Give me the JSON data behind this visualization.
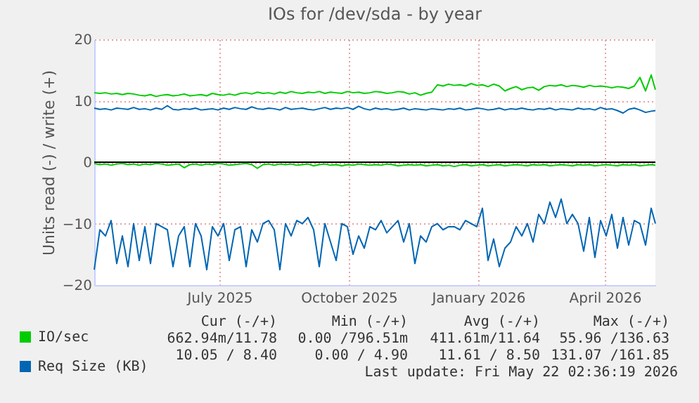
{
  "chart_data": {
    "type": "line",
    "title": "IOs for /dev/sda - by year",
    "ylabel": "Units read (-) / write (+)",
    "x": [
      "2025-04-18",
      "2025-04-22",
      "2025-04-26",
      "2025-04-30",
      "2025-05-04",
      "2025-05-08",
      "2025-05-12",
      "2025-05-16",
      "2025-05-20",
      "2025-05-24",
      "2025-05-28",
      "2025-06-01",
      "2025-06-05",
      "2025-06-09",
      "2025-06-13",
      "2025-06-17",
      "2025-06-21",
      "2025-06-25",
      "2025-06-29",
      "2025-07-03",
      "2025-07-07",
      "2025-07-11",
      "2025-07-15",
      "2025-07-19",
      "2025-07-23",
      "2025-07-27",
      "2025-07-31",
      "2025-08-04",
      "2025-08-08",
      "2025-08-12",
      "2025-08-16",
      "2025-08-20",
      "2025-08-24",
      "2025-08-28",
      "2025-09-01",
      "2025-09-05",
      "2025-09-09",
      "2025-09-13",
      "2025-09-17",
      "2025-09-21",
      "2025-09-25",
      "2025-09-29",
      "2025-10-03",
      "2025-10-07",
      "2025-10-11",
      "2025-10-15",
      "2025-10-19",
      "2025-10-23",
      "2025-10-27",
      "2025-10-31",
      "2025-11-04",
      "2025-11-08",
      "2025-11-12",
      "2025-11-16",
      "2025-11-20",
      "2025-11-24",
      "2025-11-28",
      "2025-12-02",
      "2025-12-06",
      "2025-12-10",
      "2025-12-14",
      "2025-12-18",
      "2025-12-22",
      "2025-12-26",
      "2025-12-30",
      "2026-01-03",
      "2026-01-07",
      "2026-01-11",
      "2026-01-15",
      "2026-01-19",
      "2026-01-23",
      "2026-01-27",
      "2026-01-31",
      "2026-02-04",
      "2026-02-08",
      "2026-02-12",
      "2026-02-16",
      "2026-02-20",
      "2026-02-24",
      "2026-02-28",
      "2026-03-04",
      "2026-03-08",
      "2026-03-12",
      "2026-03-16",
      "2026-03-20",
      "2026-03-24",
      "2026-03-28",
      "2026-04-01",
      "2026-04-05",
      "2026-04-09",
      "2026-04-13",
      "2026-04-17",
      "2026-04-21",
      "2026-04-25",
      "2026-04-29",
      "2026-05-03",
      "2026-05-07",
      "2026-05-11",
      "2026-05-15",
      "2026-05-19",
      "2026-05-22"
    ],
    "series": [
      {
        "name": "IO/sec",
        "color": "#00cc00",
        "values": [
          11.3,
          11.2,
          11.3,
          11.1,
          11.2,
          11.0,
          11.2,
          11.1,
          10.9,
          10.8,
          11.0,
          10.7,
          10.9,
          11.0,
          10.8,
          10.9,
          11.1,
          10.8,
          10.9,
          11.0,
          10.8,
          11.2,
          11.0,
          10.9,
          11.1,
          10.9,
          11.2,
          11.3,
          11.1,
          11.4,
          11.2,
          11.3,
          11.1,
          11.4,
          11.2,
          11.5,
          11.3,
          11.2,
          11.4,
          11.3,
          11.5,
          11.2,
          11.4,
          11.3,
          11.2,
          11.5,
          11.3,
          11.4,
          11.2,
          11.3,
          11.5,
          11.4,
          11.2,
          11.3,
          11.5,
          11.4,
          11.1,
          11.3,
          10.9,
          11.2,
          11.4,
          12.6,
          12.4,
          12.7,
          12.5,
          12.6,
          12.4,
          12.8,
          12.5,
          12.6,
          12.3,
          12.7,
          12.4,
          11.6,
          12.0,
          12.3,
          11.8,
          12.1,
          12.2,
          11.7,
          12.3,
          12.5,
          12.4,
          12.6,
          12.3,
          12.5,
          12.4,
          12.2,
          12.5,
          12.3,
          12.4,
          12.3,
          12.1,
          12.3,
          12.2,
          12.0,
          12.4,
          13.8,
          11.6,
          14.2,
          11.8
        ]
      },
      {
        "color": "#00cc00",
        "values": [
          -0.2,
          -0.4,
          -0.3,
          -0.5,
          -0.3,
          -0.2,
          -0.4,
          -0.3,
          -0.5,
          -0.3,
          -0.4,
          -0.2,
          -0.3,
          -0.5,
          -0.4,
          -0.3,
          -0.9,
          -0.4,
          -0.3,
          -0.5,
          -0.3,
          -0.4,
          -0.2,
          -0.3,
          -0.5,
          -0.4,
          -0.3,
          -0.2,
          -0.4,
          -1.0,
          -0.4,
          -0.3,
          -0.5,
          -0.3,
          -0.4,
          -0.3,
          -0.5,
          -0.4,
          -0.3,
          -0.6,
          -0.4,
          -0.3,
          -0.5,
          -0.4,
          -0.6,
          -0.4,
          -0.5,
          -0.3,
          -0.4,
          -0.5,
          -0.4,
          -0.5,
          -0.3,
          -0.4,
          -0.6,
          -0.5,
          -0.4,
          -0.5,
          -0.4,
          -0.6,
          -0.5,
          -0.4,
          -0.6,
          -0.5,
          -0.7,
          -0.5,
          -0.4,
          -0.6,
          -0.5,
          -0.4,
          -0.6,
          -0.5,
          -0.4,
          -0.6,
          -0.5,
          -0.4,
          -0.5,
          -0.6,
          -0.4,
          -0.5,
          -0.4,
          -0.6,
          -0.5,
          -0.4,
          -0.5,
          -0.6,
          -0.4,
          -0.5,
          -0.4,
          -0.6,
          -0.5,
          -0.4,
          -0.5,
          -0.6,
          -0.4,
          -0.5,
          -0.4,
          -0.6,
          -0.5,
          -0.4,
          -0.5
        ]
      },
      {
        "name": "Req Size (KB)",
        "color": "#0066b3",
        "values": [
          8.8,
          8.6,
          8.7,
          8.5,
          8.8,
          8.7,
          8.6,
          8.9,
          8.6,
          8.7,
          8.5,
          8.8,
          8.6,
          9.2,
          8.6,
          8.5,
          8.7,
          8.6,
          8.8,
          8.5,
          8.6,
          8.7,
          8.5,
          8.8,
          8.6,
          8.9,
          8.7,
          8.6,
          9.0,
          8.7,
          8.6,
          8.8,
          8.7,
          8.5,
          8.9,
          8.6,
          8.7,
          8.8,
          8.6,
          8.5,
          8.7,
          8.9,
          8.6,
          8.8,
          8.7,
          8.9,
          8.6,
          9.1,
          8.7,
          8.5,
          8.8,
          8.6,
          8.7,
          8.5,
          8.6,
          8.8,
          8.5,
          8.7,
          8.6,
          8.5,
          8.7,
          8.6,
          8.5,
          8.7,
          8.6,
          8.8,
          8.5,
          8.6,
          8.8,
          8.7,
          8.5,
          8.6,
          8.8,
          8.5,
          8.7,
          8.6,
          8.8,
          8.6,
          8.5,
          8.7,
          8.6,
          8.8,
          8.5,
          8.7,
          8.6,
          8.5,
          8.8,
          8.6,
          8.7,
          8.5,
          8.9,
          8.6,
          8.7,
          8.4,
          8.0,
          8.6,
          8.8,
          8.5,
          8.1,
          8.3,
          8.4
        ]
      },
      {
        "color": "#0066b3",
        "values": [
          -17.5,
          -11,
          -12,
          -9.5,
          -16.5,
          -12,
          -17,
          -10,
          -16,
          -10.5,
          -16.5,
          -10,
          -10.5,
          -11,
          -17,
          -12,
          -10.5,
          -17,
          -10,
          -12,
          -17.5,
          -10.5,
          -12,
          -10,
          -16,
          -11,
          -10.5,
          -17,
          -11,
          -13,
          -10,
          -9.5,
          -11,
          -17.5,
          -10,
          -12,
          -9.5,
          -10,
          -9,
          -11,
          -17,
          -10,
          -13,
          -16,
          -10,
          -10.5,
          -15,
          -12,
          -14,
          -10.5,
          -11,
          -9.5,
          -11.5,
          -10.5,
          -9.5,
          -13,
          -10,
          -16.5,
          -12,
          -13,
          -10.5,
          -10,
          -11,
          -10.5,
          -10.5,
          -11,
          -9.5,
          -10,
          -10.5,
          -7.5,
          -16,
          -12.5,
          -17,
          -14,
          -13,
          -10.5,
          -12,
          -10,
          -13,
          -8.5,
          -10,
          -6.5,
          -9,
          -6,
          -10,
          -8.5,
          -10,
          -14.5,
          -9,
          -15.5,
          -9.5,
          -12,
          -8.5,
          -14,
          -9,
          -13.5,
          -9.5,
          -10,
          -13.5,
          -7.5,
          -10
        ]
      }
    ],
    "xlim": [
      "2025-04-18",
      "2026-05-22"
    ],
    "xticks": [
      {
        "value": "2025-07-16",
        "label": "July 2025"
      },
      {
        "value": "2025-10-16",
        "label": "October 2025"
      },
      {
        "value": "2026-01-16",
        "label": "January 2026"
      },
      {
        "value": "2026-04-16",
        "label": "April 2026"
      }
    ],
    "ylim": [
      -20,
      20
    ],
    "yticks": [
      -20,
      -10,
      0,
      10,
      20
    ],
    "ref_lines": [
      {
        "axis": "y",
        "value": 0,
        "color": "#000000"
      }
    ],
    "grid": true,
    "legend": "bottom",
    "annotations": [
      "Cur (-/+)",
      "Min (-/+)",
      "Avg (-/+)",
      "Max (-/+)",
      "662.94m/11.78",
      "0.00 /796.51m",
      "411.61m/11.64",
      "55.96 /136.63",
      "10.05 / 8.40",
      "0.00 / 4.90",
      "11.61 / 8.50",
      "131.07 /161.85",
      "Last update: Fri May 22 02:36:19 2026"
    ]
  }
}
